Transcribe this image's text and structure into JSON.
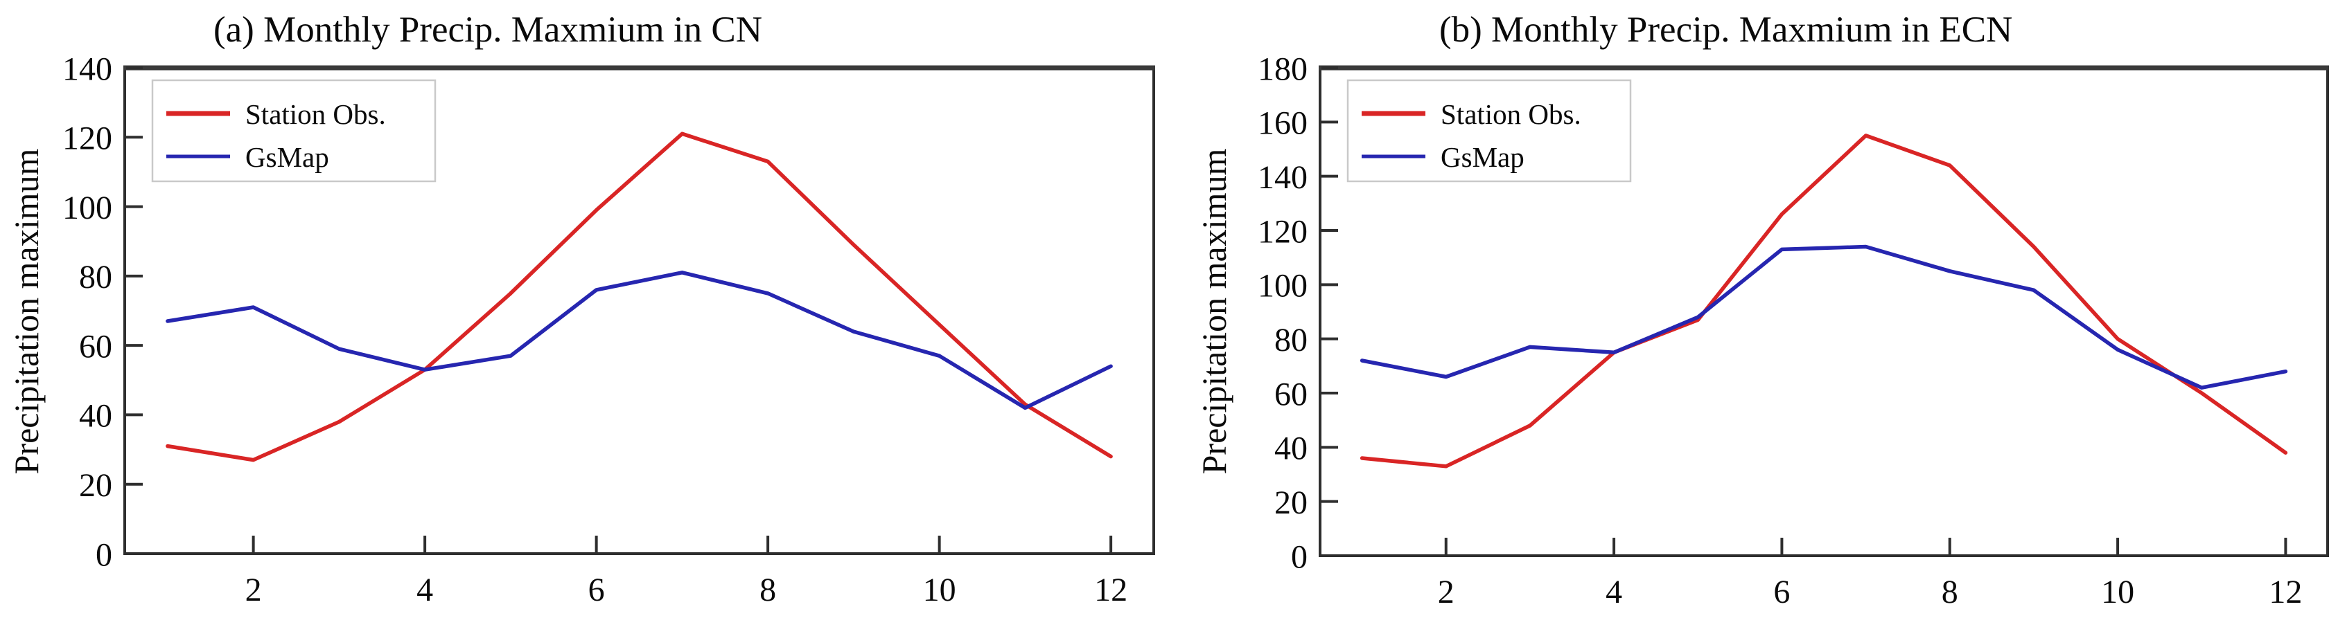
{
  "figure": {
    "background": "#ffffff",
    "axis_color": "#2e2e2e"
  },
  "chart_data": [
    {
      "type": "line",
      "title": "(a) Monthly Precip. Maxmium in CN",
      "xlabel": "",
      "ylabel": "Precipitation maximum",
      "x": [
        1,
        2,
        3,
        4,
        5,
        6,
        7,
        8,
        9,
        10,
        11,
        12
      ],
      "xticks": [
        2,
        4,
        6,
        8,
        10,
        12
      ],
      "yticks": [
        0,
        20,
        40,
        60,
        80,
        100,
        120,
        140
      ],
      "xlim": [
        0.5,
        12.5
      ],
      "ylim": [
        0,
        140
      ],
      "grid": false,
      "legend_position": "upper-left",
      "series": [
        {
          "name": "Station Obs.",
          "color": "#d92525",
          "values": [
            31,
            27,
            38,
            53,
            75,
            99,
            121,
            113,
            89,
            66,
            43,
            28
          ]
        },
        {
          "name": "GsMap",
          "color": "#2626b0",
          "values": [
            67,
            71,
            59,
            53,
            57,
            76,
            81,
            75,
            64,
            57,
            42,
            54
          ]
        }
      ]
    },
    {
      "type": "line",
      "title": "(b) Monthly Precip. Maxmium in ECN",
      "xlabel": "",
      "ylabel": "Precipitation maximum",
      "x": [
        1,
        2,
        3,
        4,
        5,
        6,
        7,
        8,
        9,
        10,
        11,
        12
      ],
      "xticks": [
        2,
        4,
        6,
        8,
        10,
        12
      ],
      "yticks": [
        0,
        20,
        40,
        60,
        80,
        100,
        120,
        140,
        160,
        180
      ],
      "xlim": [
        0.5,
        12.5
      ],
      "ylim": [
        0,
        180
      ],
      "grid": false,
      "legend_position": "upper-left",
      "series": [
        {
          "name": "Station Obs.",
          "color": "#d92525",
          "values": [
            36,
            33,
            48,
            75,
            87,
            126,
            155,
            144,
            114,
            80,
            60,
            38
          ]
        },
        {
          "name": "GsMap",
          "color": "#2626b0",
          "values": [
            72,
            66,
            77,
            75,
            88,
            113,
            114,
            105,
            98,
            76,
            62,
            68
          ]
        }
      ]
    }
  ]
}
